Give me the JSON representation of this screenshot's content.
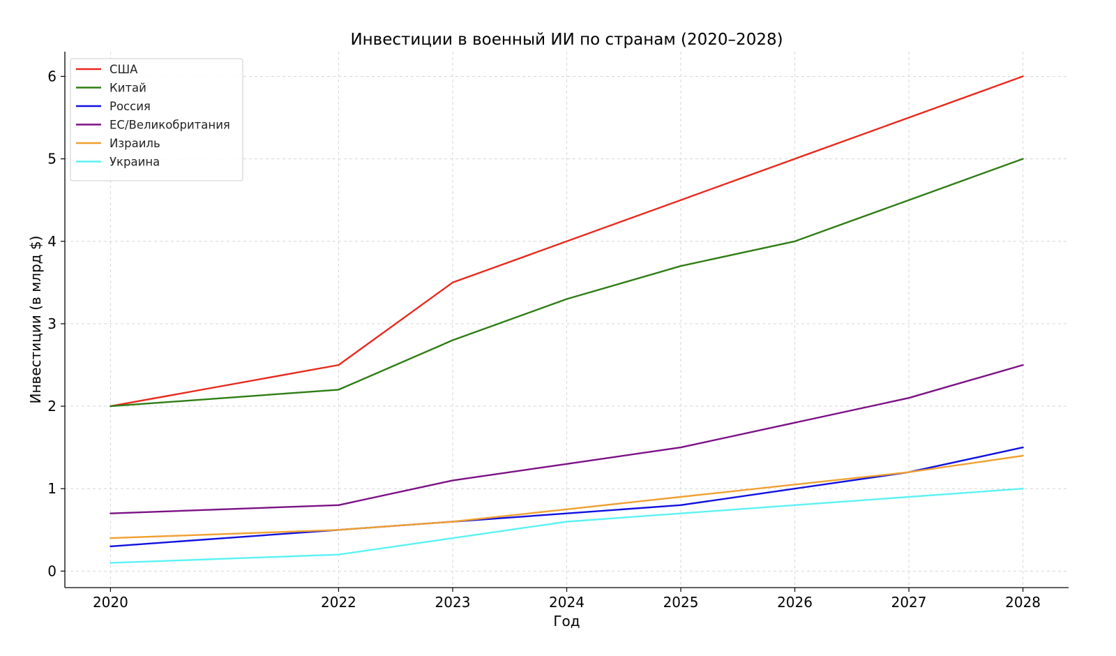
{
  "chart_data": {
    "type": "line",
    "title": "Инвестиции в военный ИИ по странам (2020–2028)",
    "xlabel": "Год",
    "ylabel": "Инвестиции (в млрд $)",
    "x": [
      2020,
      2022,
      2023,
      2024,
      2025,
      2026,
      2027,
      2028
    ],
    "x_tick_labels": [
      "2020",
      "2022",
      "2023",
      "2024",
      "2025",
      "2026",
      "2027",
      "2028"
    ],
    "y_ticks": [
      0,
      1,
      2,
      3,
      4,
      5,
      6
    ],
    "y_tick_labels": [
      "0",
      "1",
      "2",
      "3",
      "4",
      "5",
      "6"
    ],
    "xlim": [
      2019.6,
      2028.4
    ],
    "ylim": [
      -0.2,
      6.3
    ],
    "grid": true,
    "legend_position": "top-left",
    "series": [
      {
        "name": "США",
        "color": "#e8291c",
        "values": [
          2.0,
          2.5,
          3.5,
          4.0,
          4.5,
          5.0,
          5.5,
          6.0
        ]
      },
      {
        "name": "Китай",
        "color": "#2e7d14",
        "values": [
          2.0,
          2.2,
          2.8,
          3.3,
          3.7,
          4.0,
          4.5,
          5.0
        ]
      },
      {
        "name": "Россия",
        "color": "#1010e0",
        "values": [
          0.3,
          0.5,
          0.6,
          0.7,
          0.8,
          1.0,
          1.2,
          1.5
        ]
      },
      {
        "name": "ЕС/Великобритания",
        "color": "#7b1085",
        "values": [
          0.7,
          0.8,
          1.1,
          1.3,
          1.5,
          1.8,
          2.1,
          2.5
        ]
      },
      {
        "name": "Израиль",
        "color": "#f0a030",
        "values": [
          0.4,
          0.5,
          0.6,
          0.75,
          0.9,
          1.05,
          1.2,
          1.4
        ]
      },
      {
        "name": "Украина",
        "color": "#5cf2f5",
        "values": [
          0.1,
          0.2,
          0.4,
          0.6,
          0.7,
          0.8,
          0.9,
          1.0
        ]
      }
    ]
  }
}
